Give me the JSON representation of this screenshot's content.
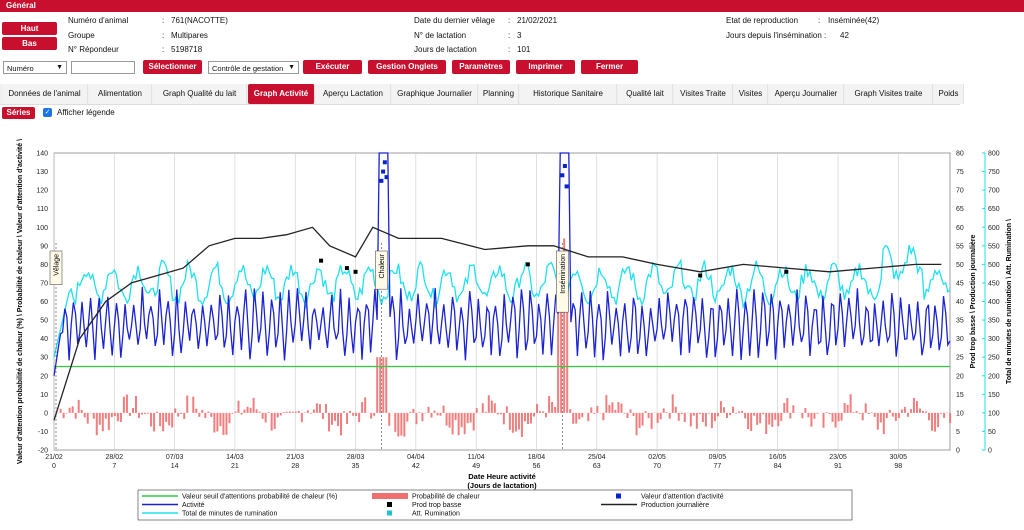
{
  "header": {
    "title": "Général"
  },
  "nav": {
    "up": "Haut",
    "down": "Bas"
  },
  "info": [
    {
      "label": "Numéro d'animal",
      "value": "761(NACOTTE)"
    },
    {
      "label": "Groupe",
      "value": "Multipares"
    },
    {
      "label": "N° Répondeur",
      "value": "5198718"
    },
    {
      "label": "Date du dernier vêlage",
      "value": "21/02/2021"
    },
    {
      "label": "N° de lactation",
      "value": "3"
    },
    {
      "label": "Jours de lactation",
      "value": "101"
    },
    {
      "label": "Etat de reproduction",
      "value": "Inséminée(42)"
    },
    {
      "label": "Jours depuis l'insémination :",
      "value": "42"
    }
  ],
  "toolbar": {
    "select_value": "Numéro",
    "search_value": "",
    "select_btn": "Sélectionner",
    "action_select": "Contrôle de gestation",
    "execute": "Exécuter",
    "tabs_mgmt": "Gestion Onglets",
    "params": "Paramètres",
    "print": "Imprimer",
    "close": "Fermer"
  },
  "tabs": [
    "Données de l'animal",
    "Alimentation",
    "Graph Qualité du lait",
    "Graph Activité",
    "Aperçu Lactation",
    "Graphique Journalier",
    "Planning",
    "Historique Sanitaire",
    "Qualité lait",
    "Visites Traite",
    "Visites",
    "Aperçu Journalier",
    "Graph Visites traite",
    "Poids"
  ],
  "active_tab": "Graph Activité",
  "series_btn": "Séries",
  "show_legend": {
    "label": "Afficher légende",
    "checked": true
  },
  "chart_data": {
    "type": "line",
    "xlabel": "Date Heure activité",
    "xlabel2": "(Jours de lactation)",
    "ylabel_left": "Valeur d'attention probabilité de chaleur (%) \\ Probabilité de chaleur \\ Valeur d'attention d'activité \\",
    "ylabel_right1": "Prod trop basse \\ Production journalière",
    "ylabel_right2": "Total de minutes de rumination \\ Att. Rumination \\",
    "ylim_left": [
      -20,
      140
    ],
    "ylim_right1": [
      0,
      80
    ],
    "ylim_right2": [
      0,
      800
    ],
    "x_range_days": [
      0,
      104
    ],
    "x_ticks": [
      {
        "date": "21/02",
        "day": "0"
      },
      {
        "date": "28/02",
        "day": "7"
      },
      {
        "date": "07/03",
        "day": "14"
      },
      {
        "date": "14/03",
        "day": "21"
      },
      {
        "date": "21/03",
        "day": "28"
      },
      {
        "date": "28/03",
        "day": "35"
      },
      {
        "date": "04/04",
        "day": "42"
      },
      {
        "date": "11/04",
        "day": "49"
      },
      {
        "date": "18/04",
        "day": "56"
      },
      {
        "date": "25/04",
        "day": "63"
      },
      {
        "date": "02/05",
        "day": "70"
      },
      {
        "date": "09/05",
        "day": "77"
      },
      {
        "date": "16/05",
        "day": "84"
      },
      {
        "date": "23/05",
        "day": "91"
      },
      {
        "date": "30/05",
        "day": "98"
      }
    ],
    "y_ticks_left": [
      140,
      130,
      120,
      110,
      100,
      90,
      80,
      70,
      60,
      50,
      40,
      30,
      20,
      10,
      0,
      -10,
      -20
    ],
    "y_ticks_right1": [
      80,
      75,
      70,
      65,
      60,
      55,
      50,
      45,
      40,
      35,
      30,
      25,
      20,
      15,
      10,
      5,
      0
    ],
    "y_ticks_right2": [
      800,
      750,
      700,
      650,
      600,
      550,
      500,
      450,
      400,
      350,
      300,
      250,
      200,
      150,
      100,
      50,
      0
    ],
    "threshold_value": 25,
    "events": [
      {
        "label": "Vêlage",
        "day": 0
      },
      {
        "label": "Chaleur",
        "day": 38
      },
      {
        "label": "Insémination",
        "day": 59
      }
    ],
    "heat_probability_peaks": [
      {
        "day": 38,
        "value": 30
      },
      {
        "day": 59,
        "value": 100
      }
    ],
    "activity_attention_points": [
      {
        "day": 38,
        "value": 125
      },
      {
        "day": 38.2,
        "value": 130
      },
      {
        "day": 38.4,
        "value": 135
      },
      {
        "day": 38.6,
        "value": 127
      },
      {
        "day": 59,
        "value": 128
      },
      {
        "day": 59.3,
        "value": 133
      },
      {
        "day": 59.5,
        "value": 122
      }
    ],
    "production": [
      {
        "day": 0,
        "value": 8
      },
      {
        "day": 3,
        "value": 30
      },
      {
        "day": 6,
        "value": 40
      },
      {
        "day": 9,
        "value": 45
      },
      {
        "day": 12,
        "value": 47
      },
      {
        "day": 15,
        "value": 49
      },
      {
        "day": 18,
        "value": 55
      },
      {
        "day": 21,
        "value": 57
      },
      {
        "day": 24,
        "value": 57
      },
      {
        "day": 27,
        "value": 58
      },
      {
        "day": 30,
        "value": 60
      },
      {
        "day": 32,
        "value": 55
      },
      {
        "day": 35,
        "value": 52
      },
      {
        "day": 37,
        "value": 60
      },
      {
        "day": 40,
        "value": 57
      },
      {
        "day": 45,
        "value": 57
      },
      {
        "day": 50,
        "value": 54
      },
      {
        "day": 55,
        "value": 55
      },
      {
        "day": 58,
        "value": 55
      },
      {
        "day": 62,
        "value": 52
      },
      {
        "day": 66,
        "value": 52
      },
      {
        "day": 70,
        "value": 50
      },
      {
        "day": 75,
        "value": 48
      },
      {
        "day": 80,
        "value": 50
      },
      {
        "day": 85,
        "value": 49
      },
      {
        "day": 90,
        "value": 48
      },
      {
        "day": 95,
        "value": 49
      },
      {
        "day": 100,
        "value": 50
      },
      {
        "day": 103,
        "value": 50
      }
    ],
    "low_production_points": [
      {
        "day": 31,
        "value": 51
      },
      {
        "day": 34,
        "value": 49
      },
      {
        "day": 35,
        "value": 48
      },
      {
        "day": 38,
        "value": 48
      },
      {
        "day": 55,
        "value": 50
      },
      {
        "day": 75,
        "value": 47
      },
      {
        "day": 85,
        "value": 48
      }
    ],
    "legend": [
      {
        "name": "Valeur seuil d'attentions probabilité de chaleur (%)",
        "color": "#2ecc40",
        "style": "line"
      },
      {
        "name": "Probabilité de chaleur",
        "color": "#f07070",
        "style": "bar"
      },
      {
        "name": "Valeur d'attention d'activité",
        "color": "#0a22cc",
        "style": "square"
      },
      {
        "name": "Activité",
        "color": "#1a22d4",
        "style": "line"
      },
      {
        "name": "Prod trop basse",
        "color": "#000000",
        "style": "square"
      },
      {
        "name": "Production journalière",
        "color": "#222222",
        "style": "line"
      },
      {
        "name": "Total de minutes de rumination",
        "color": "#1fe0f0",
        "style": "line"
      },
      {
        "name": "Att. Rumination",
        "color": "#1fc0d0",
        "style": "square"
      }
    ]
  }
}
